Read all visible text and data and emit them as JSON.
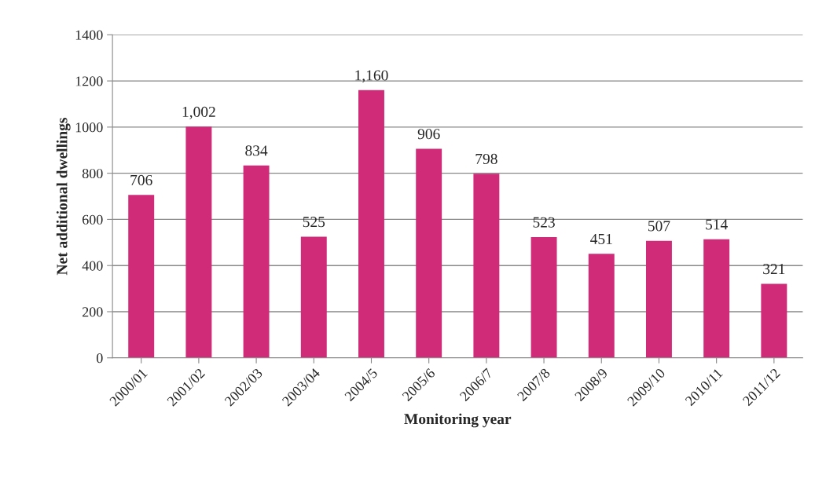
{
  "chart_data": {
    "type": "bar",
    "xlabel": "Monitoring year",
    "ylabel": "Net additional dwellings",
    "categories": [
      "2000/01",
      "2001/02",
      "2002/03",
      "2003/04",
      "2004/5",
      "2005/6",
      "2006/7",
      "2007/8",
      "2008/9",
      "2009/10",
      "2010/11",
      "2011/12"
    ],
    "values": [
      706,
      1002,
      834,
      525,
      1160,
      906,
      798,
      523,
      451,
      507,
      514,
      321
    ],
    "value_labels": [
      "706",
      "1,002",
      "834",
      "525",
      "1,160",
      "906",
      "798",
      "523",
      "451",
      "507",
      "514",
      "321"
    ],
    "color": "#d02b78",
    "ylim": [
      0,
      1400
    ],
    "yticks": [
      0,
      200,
      400,
      600,
      800,
      1000,
      1200,
      1400
    ],
    "grid": "y",
    "legend": false
  }
}
